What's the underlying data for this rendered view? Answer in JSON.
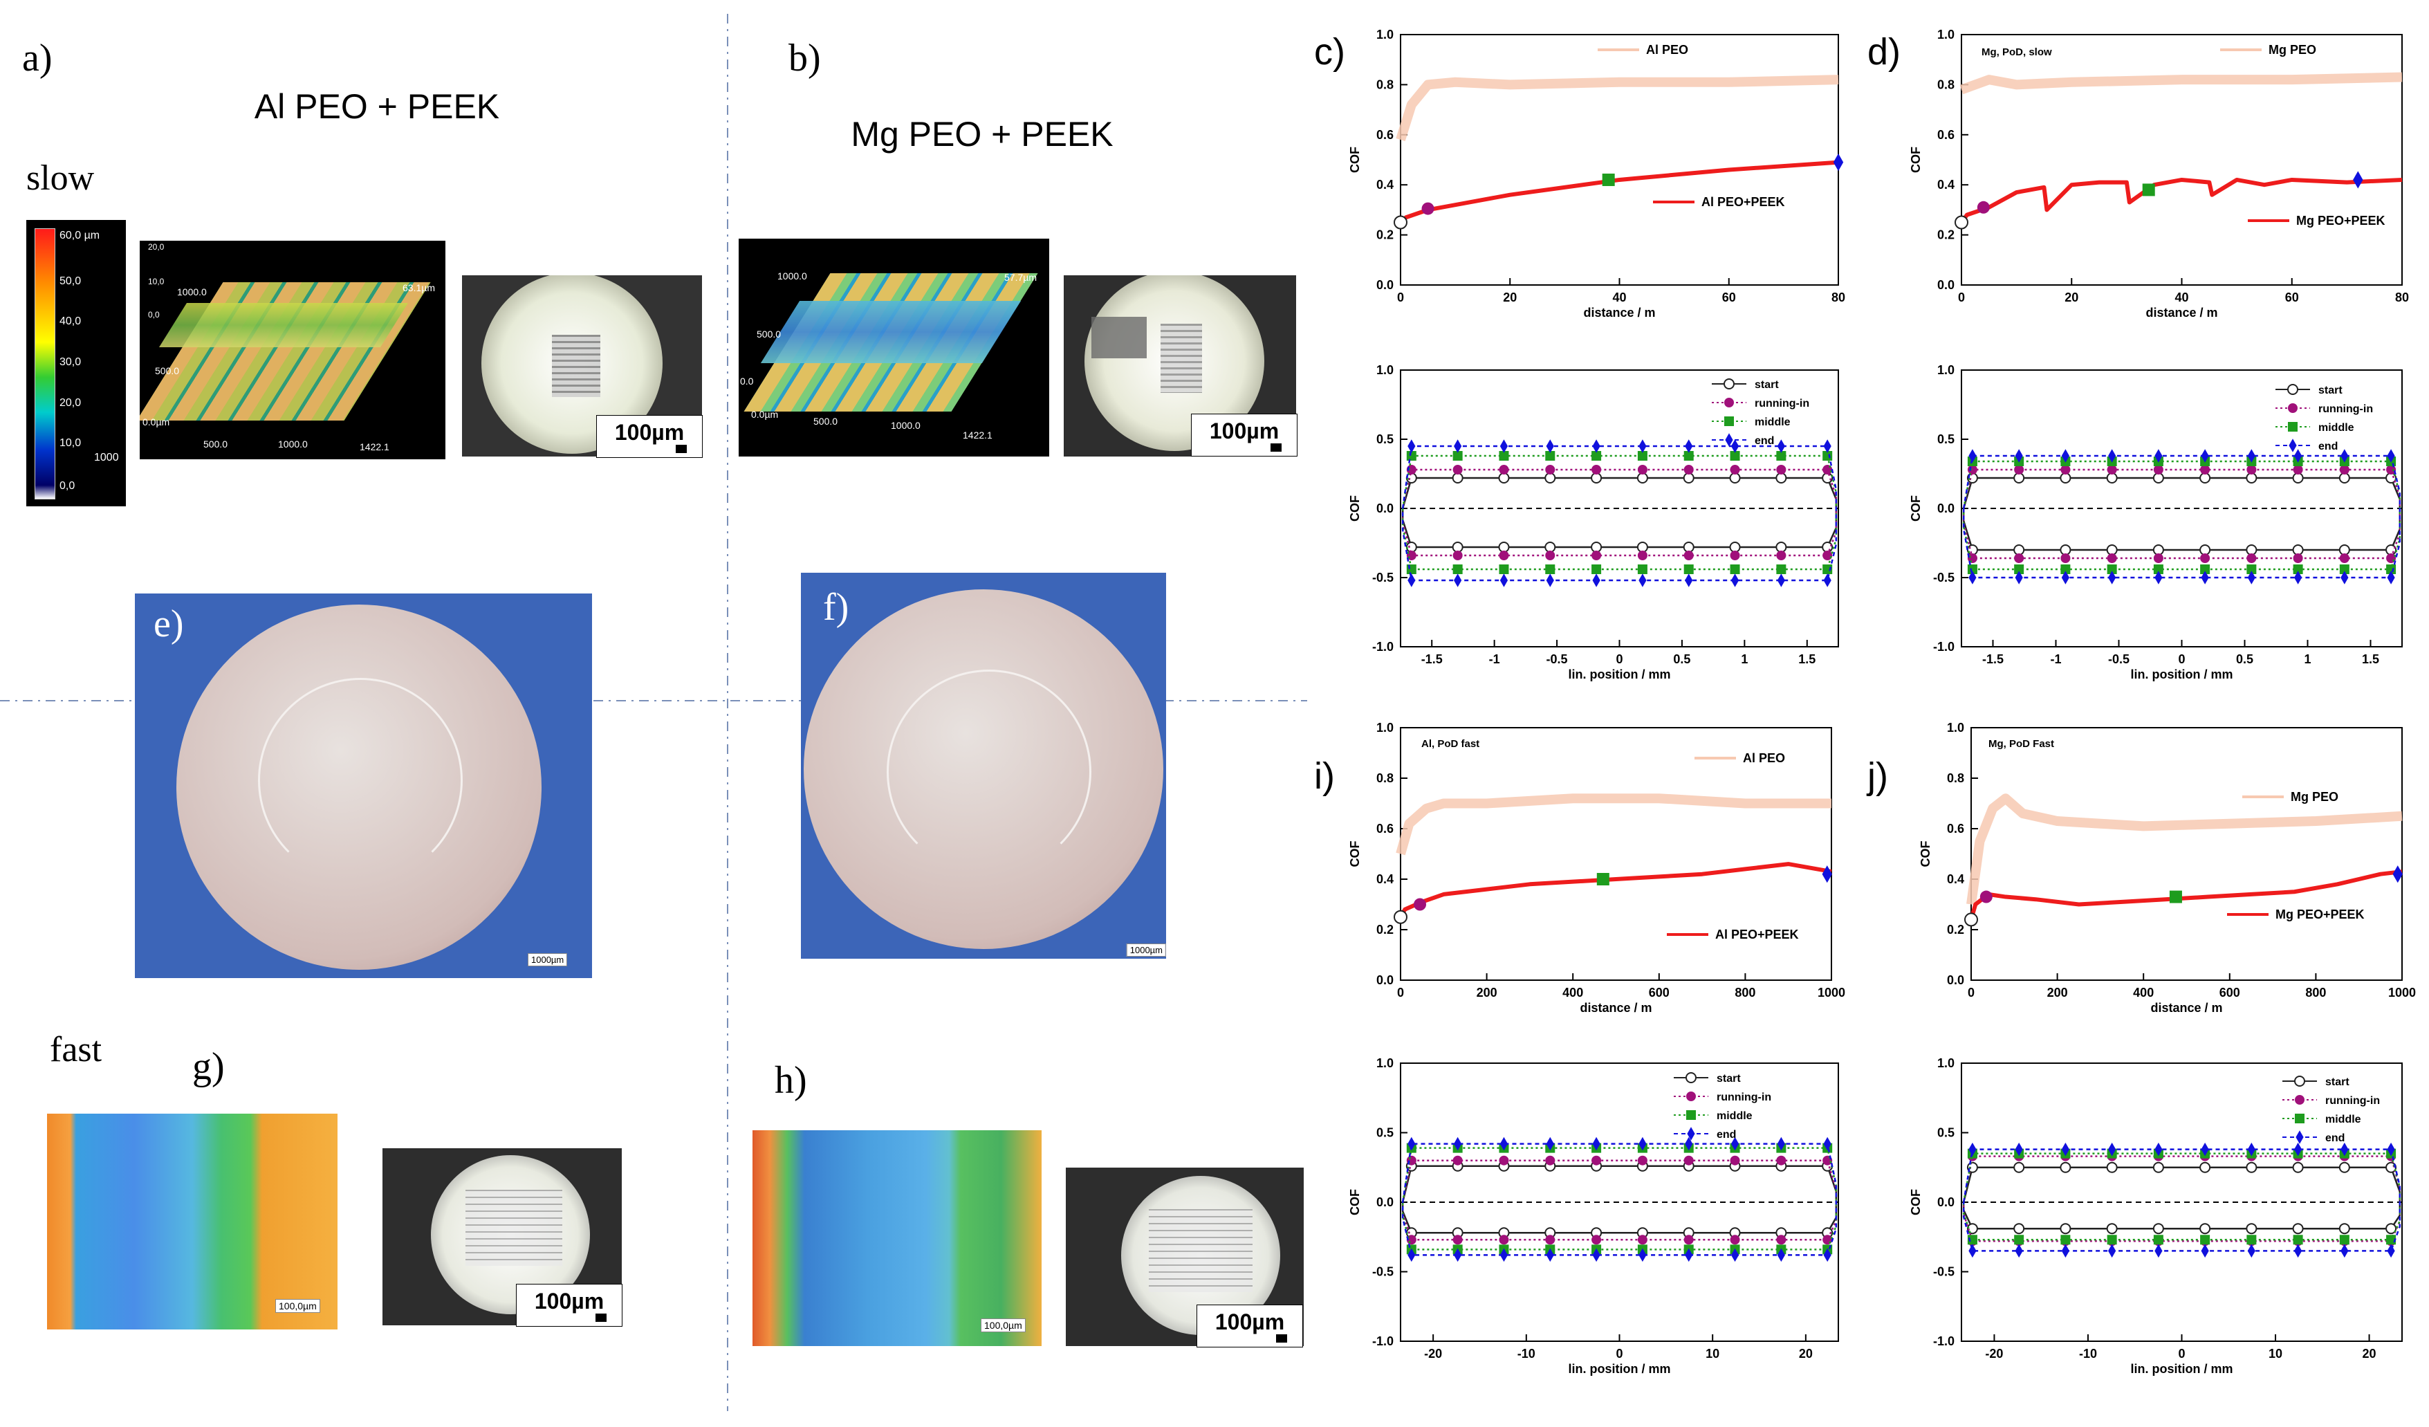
{
  "panels": {
    "a": {
      "label": "a)",
      "title": "Al PEO + PEEK",
      "speed": "slow"
    },
    "b": {
      "label": "b)",
      "title": "Mg PEO + PEEK"
    },
    "e": {
      "label": "e)"
    },
    "f": {
      "label": "f)"
    },
    "g": {
      "label": "g)",
      "speed": "fast"
    },
    "h": {
      "label": "h)"
    }
  },
  "images": {
    "scalebar": "100µm",
    "micro_scale": "100,0µm",
    "disc_scale": "1000µm",
    "colormap_ticks": [
      "60,0 µm",
      "50,0",
      "40,0",
      "30,0",
      "20,0",
      "10,0",
      "0,0"
    ],
    "colormap_extra": "1000",
    "surf_a": {
      "top": "20,0",
      "mid": "10,0",
      "low": "0,0",
      "y1": "1000.0",
      "y2": "500.0",
      "origin": "0.0µm",
      "x1": "500.0",
      "x2": "1000.0",
      "x3": "1422.1",
      "zmax": "63.1µm"
    },
    "surf_b": {
      "y1": "1000.0",
      "y2": "500.0",
      "y3": "0.0",
      "origin": "0.0µm",
      "x1": "500.0",
      "x2": "1000.0",
      "x3": "1422.1",
      "zmax": "57.7µm"
    }
  },
  "chart_data": [
    {
      "id": "c",
      "type": "line",
      "panel_label": "c)",
      "title": "",
      "xlabel": "distance / m",
      "ylabel": "COF",
      "xlim": [
        0,
        80
      ],
      "ylim": [
        0,
        1.0
      ],
      "xticks": [
        0,
        20,
        40,
        60,
        80
      ],
      "yticks": [
        0.0,
        0.2,
        0.4,
        0.6,
        0.8,
        1.0
      ],
      "series": [
        {
          "name": "Al PEO",
          "color": "#f7c9b1",
          "x": [
            0,
            2,
            5,
            10,
            20,
            40,
            60,
            80
          ],
          "y": [
            0.58,
            0.72,
            0.8,
            0.81,
            0.8,
            0.81,
            0.81,
            0.82
          ]
        },
        {
          "name": "Al PEO+PEEK",
          "color": "#ee1c1c",
          "x": [
            0,
            1,
            5,
            10,
            20,
            40,
            60,
            80
          ],
          "y": [
            0.25,
            0.27,
            0.3,
            0.32,
            0.36,
            0.42,
            0.46,
            0.49
          ]
        }
      ],
      "markers": [
        {
          "x": 0,
          "y": 0.25,
          "shape": "open-circle"
        },
        {
          "x": 5,
          "y": 0.305,
          "shape": "circle"
        },
        {
          "x": 38,
          "y": 0.42,
          "shape": "square"
        },
        {
          "x": 80,
          "y": 0.49,
          "shape": "diamond"
        }
      ]
    },
    {
      "id": "d",
      "type": "line",
      "panel_label": "d)",
      "title": "Mg, PoD, slow",
      "xlabel": "distance / m",
      "ylabel": "COF",
      "xlim": [
        0,
        80
      ],
      "ylim": [
        0,
        1.0
      ],
      "xticks": [
        0,
        20,
        40,
        60,
        80
      ],
      "yticks": [
        0.0,
        0.2,
        0.4,
        0.6,
        0.8,
        1.0
      ],
      "series": [
        {
          "name": "Mg PEO",
          "color": "#f7c9b1",
          "x": [
            0,
            5,
            10,
            20,
            40,
            60,
            80
          ],
          "y": [
            0.78,
            0.82,
            0.8,
            0.81,
            0.82,
            0.82,
            0.83
          ]
        },
        {
          "name": "Mg PEO+PEEK",
          "color": "#ee1c1c",
          "x": [
            0,
            1,
            5,
            10,
            15,
            15.5,
            20,
            25,
            30,
            30.5,
            35,
            40,
            45,
            45.5,
            50,
            55,
            60,
            70,
            80
          ],
          "y": [
            0.25,
            0.28,
            0.31,
            0.37,
            0.39,
            0.3,
            0.4,
            0.41,
            0.41,
            0.33,
            0.4,
            0.42,
            0.41,
            0.36,
            0.42,
            0.4,
            0.42,
            0.41,
            0.42
          ]
        }
      ],
      "markers": [
        {
          "x": 0,
          "y": 0.25,
          "shape": "open-circle"
        },
        {
          "x": 4,
          "y": 0.31,
          "shape": "circle"
        },
        {
          "x": 34,
          "y": 0.38,
          "shape": "square"
        },
        {
          "x": 72,
          "y": 0.42,
          "shape": "diamond"
        }
      ]
    },
    {
      "id": "c2",
      "type": "line",
      "panel_label": "",
      "xlabel": "lin. position / mm",
      "ylabel": "COF",
      "xlim": [
        -1.75,
        1.75
      ],
      "ylim": [
        -1.0,
        1.0
      ],
      "xticks": [
        -1.5,
        -1.0,
        -0.5,
        0.0,
        0.5,
        1.0,
        1.5
      ],
      "yticks": [
        -1.0,
        -0.5,
        0.0,
        0.5,
        1.0
      ],
      "series": [
        {
          "name": "start",
          "color": "#222222",
          "marker": "open-circle",
          "upper": 0.22,
          "lower": -0.28
        },
        {
          "name": "running-in",
          "color": "#a0107a",
          "marker": "circle",
          "upper": 0.28,
          "lower": -0.34
        },
        {
          "name": "middle",
          "color": "#1e9c1e",
          "marker": "square",
          "upper": 0.38,
          "lower": -0.44
        },
        {
          "name": "end",
          "color": "#1010dd",
          "marker": "diamond",
          "upper": 0.45,
          "lower": -0.52
        }
      ]
    },
    {
      "id": "d2",
      "type": "line",
      "panel_label": "",
      "xlabel": "lin. position / mm",
      "ylabel": "COF",
      "xlim": [
        -1.75,
        1.75
      ],
      "ylim": [
        -1.0,
        1.0
      ],
      "xticks": [
        -1.5,
        -1.0,
        -0.5,
        0.0,
        0.5,
        1.0,
        1.5
      ],
      "yticks": [
        -1.0,
        -0.5,
        0.0,
        0.5,
        1.0
      ],
      "series": [
        {
          "name": "start",
          "color": "#222222",
          "marker": "open-circle",
          "upper": 0.22,
          "lower": -0.3
        },
        {
          "name": "running-in",
          "color": "#a0107a",
          "marker": "circle",
          "upper": 0.28,
          "lower": -0.36
        },
        {
          "name": "middle",
          "color": "#1e9c1e",
          "marker": "square",
          "upper": 0.34,
          "lower": -0.44
        },
        {
          "name": "end",
          "color": "#1010dd",
          "marker": "diamond",
          "upper": 0.38,
          "lower": -0.5
        }
      ]
    },
    {
      "id": "i",
      "type": "line",
      "panel_label": "i)",
      "title": "Al, PoD fast",
      "xlabel": "distance / m",
      "ylabel": "COF",
      "xlim": [
        0,
        1000
      ],
      "ylim": [
        0,
        1.0
      ],
      "xticks": [
        0,
        200,
        400,
        600,
        800,
        1000
      ],
      "yticks": [
        0.0,
        0.2,
        0.4,
        0.6,
        0.8,
        1.0
      ],
      "series": [
        {
          "name": "Al PEO",
          "color": "#f7c9b1",
          "x": [
            0,
            20,
            60,
            100,
            200,
            400,
            600,
            800,
            1000
          ],
          "y": [
            0.5,
            0.62,
            0.68,
            0.7,
            0.7,
            0.72,
            0.72,
            0.7,
            0.7
          ]
        },
        {
          "name": "Al PEO+PEEK",
          "color": "#ee1c1c",
          "x": [
            0,
            10,
            50,
            100,
            200,
            300,
            400,
            500,
            600,
            700,
            800,
            900,
            1000
          ],
          "y": [
            0.25,
            0.28,
            0.31,
            0.34,
            0.36,
            0.38,
            0.39,
            0.4,
            0.41,
            0.42,
            0.44,
            0.46,
            0.43
          ]
        }
      ],
      "markers": [
        {
          "x": 0,
          "y": 0.25,
          "shape": "open-circle"
        },
        {
          "x": 45,
          "y": 0.3,
          "shape": "circle"
        },
        {
          "x": 470,
          "y": 0.4,
          "shape": "square"
        },
        {
          "x": 990,
          "y": 0.42,
          "shape": "diamond"
        }
      ]
    },
    {
      "id": "j",
      "type": "line",
      "panel_label": "j)",
      "title": "Mg, PoD Fast",
      "xlabel": "distance / m",
      "ylabel": "COF",
      "xlim": [
        0,
        1000
      ],
      "ylim": [
        0,
        1.0
      ],
      "xticks": [
        0,
        200,
        400,
        600,
        800,
        1000
      ],
      "yticks": [
        0.0,
        0.2,
        0.4,
        0.6,
        0.8,
        1.0
      ],
      "series": [
        {
          "name": "Mg PEO",
          "color": "#f7c9b1",
          "x": [
            0,
            20,
            50,
            80,
            120,
            200,
            300,
            400,
            600,
            800,
            1000
          ],
          "y": [
            0.3,
            0.55,
            0.68,
            0.72,
            0.66,
            0.63,
            0.62,
            0.61,
            0.62,
            0.63,
            0.65
          ]
        },
        {
          "name": "Mg PEO+PEEK",
          "color": "#ee1c1c",
          "x": [
            0,
            10,
            40,
            80,
            150,
            250,
            350,
            450,
            550,
            650,
            750,
            850,
            950,
            1000
          ],
          "y": [
            0.24,
            0.3,
            0.34,
            0.33,
            0.32,
            0.3,
            0.31,
            0.32,
            0.33,
            0.34,
            0.35,
            0.38,
            0.42,
            0.43
          ]
        }
      ],
      "markers": [
        {
          "x": 0,
          "y": 0.24,
          "shape": "open-circle"
        },
        {
          "x": 35,
          "y": 0.33,
          "shape": "circle"
        },
        {
          "x": 475,
          "y": 0.33,
          "shape": "square"
        },
        {
          "x": 990,
          "y": 0.42,
          "shape": "diamond"
        }
      ]
    },
    {
      "id": "i2",
      "type": "line",
      "panel_label": "",
      "xlabel": "lin. position / mm",
      "ylabel": "COF",
      "xlim": [
        -23.5,
        23.5
      ],
      "ylim": [
        -1.0,
        1.0
      ],
      "xticks": [
        -20,
        -10,
        0,
        10,
        20
      ],
      "yticks": [
        -1.0,
        -0.5,
        0.0,
        0.5,
        1.0
      ],
      "series": [
        {
          "name": "start",
          "color": "#222222",
          "marker": "open-circle",
          "upper": 0.26,
          "lower": -0.22
        },
        {
          "name": "running-in",
          "color": "#a0107a",
          "marker": "circle",
          "upper": 0.3,
          "lower": -0.27
        },
        {
          "name": "middle",
          "color": "#1e9c1e",
          "marker": "square",
          "upper": 0.39,
          "lower": -0.34
        },
        {
          "name": "end",
          "color": "#1010dd",
          "marker": "diamond",
          "upper": 0.42,
          "lower": -0.38
        }
      ]
    },
    {
      "id": "j2",
      "type": "line",
      "panel_label": "",
      "xlabel": "lin. position / mm",
      "ylabel": "COF",
      "xlim": [
        -23.5,
        23.5
      ],
      "ylim": [
        -1.0,
        1.0
      ],
      "xticks": [
        -20,
        -10,
        0,
        10,
        20
      ],
      "yticks": [
        -1.0,
        -0.5,
        0.0,
        0.5,
        1.0
      ],
      "series": [
        {
          "name": "start",
          "color": "#222222",
          "marker": "open-circle",
          "upper": 0.25,
          "lower": -0.19
        },
        {
          "name": "running-in",
          "color": "#a0107a",
          "marker": "circle",
          "upper": 0.33,
          "lower": -0.28
        },
        {
          "name": "middle",
          "color": "#1e9c1e",
          "marker": "square",
          "upper": 0.35,
          "lower": -0.27
        },
        {
          "name": "end",
          "color": "#1010dd",
          "marker": "diamond",
          "upper": 0.38,
          "lower": -0.35
        }
      ]
    }
  ]
}
